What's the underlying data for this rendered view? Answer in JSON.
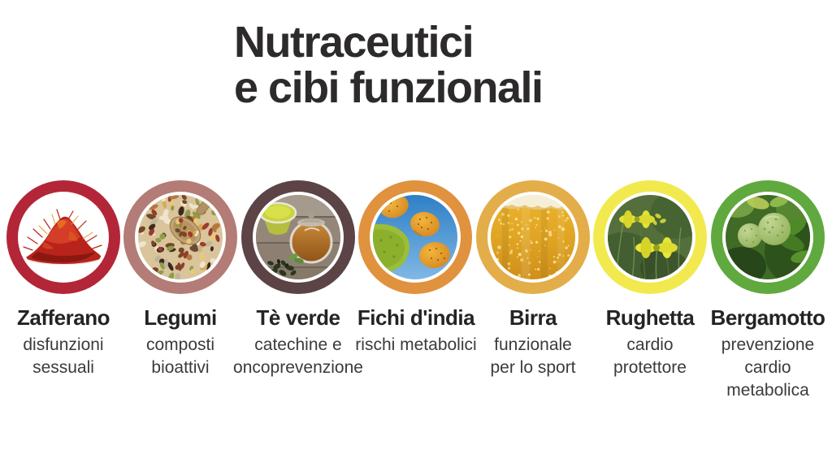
{
  "title": {
    "line1": "Nutraceutici",
    "line2": "e cibi funzionali"
  },
  "items": [
    {
      "name": "Zafferano",
      "sub": [
        "disfunzioni",
        "sessuali"
      ],
      "ring_color": "#b32638",
      "image": "saffron-threads-pile"
    },
    {
      "name": "Legumi",
      "sub": [
        "composti",
        "bioattivi"
      ],
      "ring_color": "#b47c76",
      "image": "mixed-legumes-with-wooden-spoon"
    },
    {
      "name": "Tè verde",
      "sub": [
        "catechine e",
        "oncoprevenzione"
      ],
      "ring_color": "#5c4345",
      "image": "green-tea-pot-and-cup"
    },
    {
      "name": "Fichi d'india",
      "sub": [
        "rischi metabolici"
      ],
      "ring_color": "#e0923f",
      "image": "prickly-pear-fruits-on-cactus"
    },
    {
      "name": "Birra",
      "sub": [
        "funzionale",
        "per lo sport"
      ],
      "ring_color": "#e3ae49",
      "image": "beer-with-bubbles-and-foam"
    },
    {
      "name": "Rughetta",
      "sub": [
        "cardio",
        "protettore"
      ],
      "ring_color": "#f2e94f",
      "image": "yellow-arugula-flowers"
    },
    {
      "name": "Bergamotto",
      "sub": [
        "prevenzione",
        "cardio",
        "metabolica"
      ],
      "ring_color": "#60a93f",
      "image": "bergamot-fruits-on-tree"
    }
  ],
  "colors": {
    "background": "#ffffff",
    "title_text": "#2d2a2b",
    "name_text": "#262324",
    "sub_text": "#3c3a3b"
  }
}
